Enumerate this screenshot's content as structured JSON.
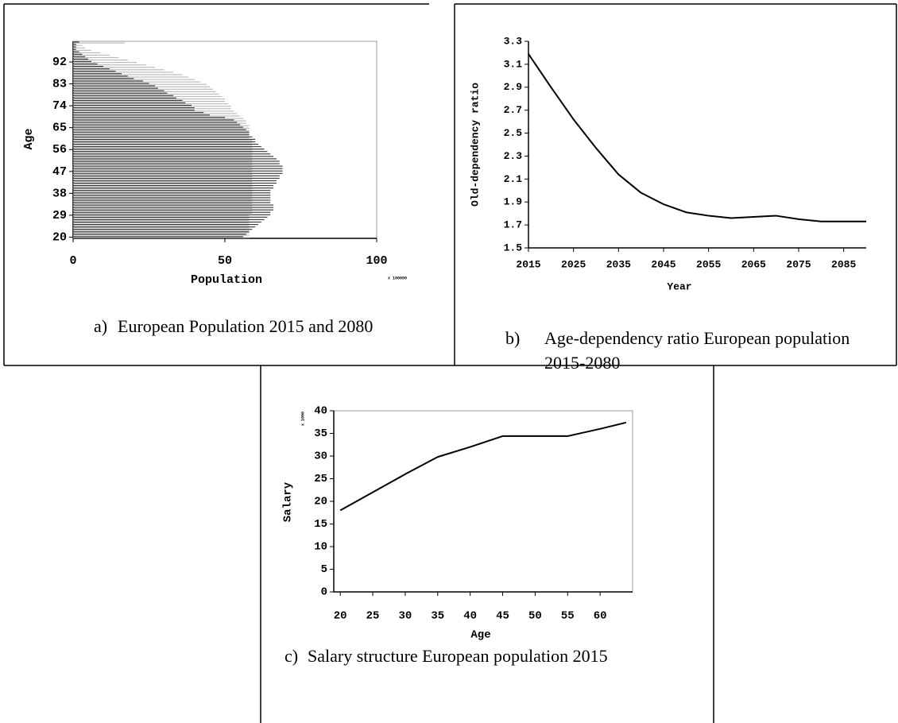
{
  "chart_data": [
    {
      "type": "bar",
      "orientation": "horizontal",
      "label": "a)",
      "caption": "European Population 2015 and 2080",
      "x_label": "Population",
      "y_label": "Age",
      "x_multiplier": "x 100000",
      "y": [
        20,
        21,
        22,
        23,
        24,
        25,
        26,
        27,
        28,
        29,
        30,
        31,
        32,
        33,
        34,
        35,
        36,
        37,
        38,
        39,
        40,
        41,
        42,
        43,
        44,
        45,
        46,
        47,
        48,
        49,
        50,
        51,
        52,
        53,
        54,
        55,
        56,
        57,
        58,
        59,
        60,
        61,
        62,
        63,
        64,
        65,
        66,
        67,
        68,
        69,
        70,
        71,
        72,
        73,
        74,
        75,
        76,
        77,
        78,
        79,
        80,
        81,
        82,
        83,
        84,
        85,
        86,
        87,
        88,
        89,
        90,
        91,
        92,
        93,
        94,
        95,
        96,
        97,
        98,
        99,
        100
      ],
      "series": [
        {
          "color": "#bbbbbb",
          "values": [
            58,
            58,
            58,
            58,
            58,
            58,
            58,
            58,
            58,
            58,
            59,
            59,
            59,
            59,
            59,
            59,
            59,
            59,
            59,
            59,
            59,
            59,
            59,
            59,
            59,
            59,
            59,
            59,
            59,
            59,
            59,
            59,
            59,
            59,
            59,
            59,
            59,
            59,
            59,
            59,
            59,
            58,
            58,
            58,
            58,
            58,
            58,
            57,
            57,
            56,
            55,
            54,
            53,
            52,
            52,
            51,
            50,
            50,
            49,
            48,
            47,
            46,
            45,
            44,
            42,
            40,
            38,
            36,
            33,
            30,
            27,
            24,
            21,
            18,
            15,
            12,
            9,
            6,
            4,
            3,
            17
          ]
        },
        {
          "color": "#404040",
          "values": [
            56,
            57,
            58,
            59,
            60,
            61,
            62,
            63,
            64,
            65,
            65,
            66,
            66,
            66,
            65,
            65,
            65,
            65,
            65,
            65,
            66,
            66,
            67,
            67,
            68,
            68,
            69,
            69,
            69,
            69,
            68,
            68,
            67,
            66,
            65,
            64,
            63,
            62,
            61,
            60,
            60,
            59,
            58,
            58,
            57,
            56,
            55,
            54,
            53,
            50,
            45,
            43,
            40,
            40,
            39,
            37,
            36,
            34,
            33,
            31,
            30,
            28,
            27,
            25,
            23,
            20,
            18,
            16,
            14,
            12,
            10,
            8,
            6,
            5,
            4,
            3,
            2,
            1,
            1,
            1,
            2
          ]
        }
      ],
      "xlim": [
        0,
        100
      ],
      "xticks": [
        0,
        50,
        100
      ],
      "ylim": [
        19.5,
        100.5
      ],
      "yticks": [
        20,
        29,
        38,
        47,
        56,
        65,
        74,
        83,
        92
      ]
    },
    {
      "type": "line",
      "label": "b)",
      "caption": "Age-dependency ratio European population 2015-2080",
      "x_label": "Year",
      "y_label": "Old-dependency ratio",
      "x": [
        2015,
        2020,
        2025,
        2030,
        2035,
        2040,
        2045,
        2050,
        2055,
        2060,
        2065,
        2070,
        2075,
        2080,
        2085,
        2090
      ],
      "series": [
        {
          "color": "#000000",
          "values": [
            3.19,
            2.9,
            2.62,
            2.37,
            2.14,
            1.98,
            1.88,
            1.81,
            1.78,
            1.76,
            1.77,
            1.78,
            1.75,
            1.73,
            1.73,
            1.73
          ]
        }
      ],
      "xlim": [
        2015,
        2090
      ],
      "xticks": [
        2015,
        2025,
        2035,
        2045,
        2055,
        2065,
        2075,
        2085
      ],
      "ylim": [
        1.5,
        3.3
      ],
      "yticks": [
        1.5,
        1.7,
        1.9,
        2.1,
        2.3,
        2.5,
        2.7,
        2.9,
        3.1,
        3.3
      ]
    },
    {
      "type": "line",
      "label": "c)",
      "caption": "Salary structure European population 2015",
      "x_label": "Age",
      "y_label": "Salary",
      "y_multiplier": "x 1000",
      "x": [
        20,
        25,
        30,
        35,
        40,
        45,
        50,
        55,
        60,
        64
      ],
      "series": [
        {
          "color": "#000000",
          "values": [
            18,
            22,
            26,
            29.8,
            32,
            34.4,
            34.4,
            34.4,
            36,
            37.4
          ]
        }
      ],
      "xlim": [
        19,
        65
      ],
      "xticks": [
        20,
        25,
        30,
        35,
        40,
        45,
        50,
        55,
        60
      ],
      "ylim": [
        0,
        40
      ],
      "yticks": [
        0,
        5,
        10,
        15,
        20,
        25,
        30,
        35,
        40
      ]
    }
  ]
}
